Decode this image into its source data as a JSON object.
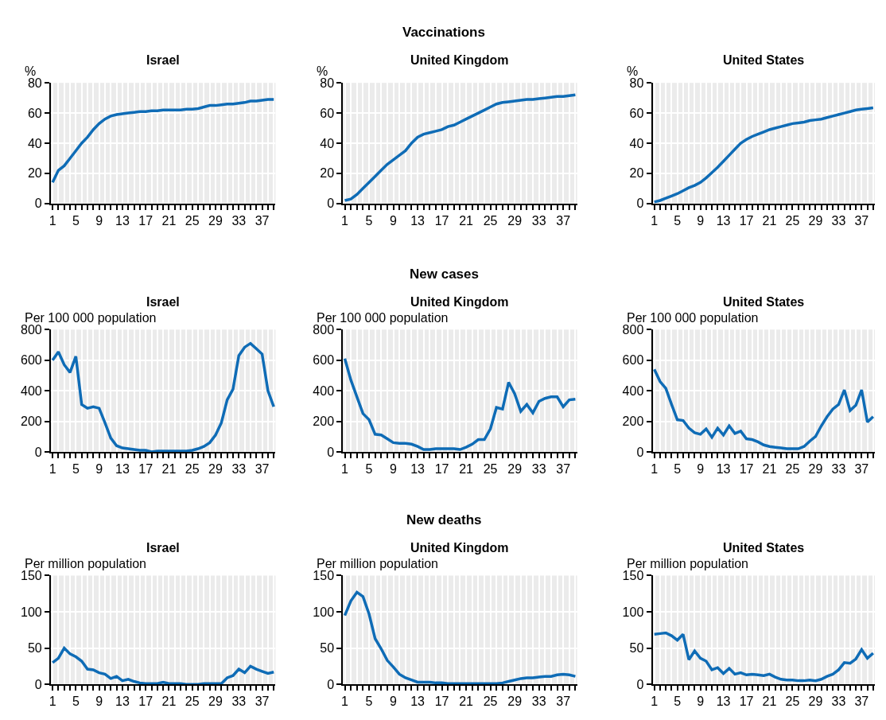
{
  "chart_data": [
    {
      "type": "line",
      "title": "Israel",
      "ylabel": "%",
      "x": [
        1,
        2,
        3,
        4,
        5,
        6,
        7,
        8,
        9,
        10,
        11,
        12,
        13,
        14,
        15,
        16,
        17,
        18,
        19,
        20,
        21,
        22,
        23,
        24,
        25,
        26,
        27,
        28,
        29,
        30,
        31,
        32,
        33,
        34,
        35,
        36,
        37,
        38,
        39
      ],
      "color": "#0f6cb6",
      "values": [
        14,
        22,
        25,
        30,
        35,
        40,
        44,
        49,
        53,
        56,
        58,
        59,
        59.5,
        60,
        60.5,
        61,
        61,
        61.5,
        61.5,
        62,
        62,
        62,
        62,
        62.5,
        62.5,
        63,
        64,
        65,
        65,
        65.5,
        66,
        66,
        66.5,
        67,
        68,
        68,
        68.5,
        69,
        69
      ],
      "xlim": [
        0.7,
        39.3
      ],
      "xticks": [
        1,
        {
          "value": 2,
          "label": null
        },
        {
          "value": 3,
          "label": null
        },
        {
          "value": 4,
          "label": null
        },
        5,
        {
          "value": 6,
          "label": null
        },
        {
          "value": 7,
          "label": null
        },
        {
          "value": 8,
          "label": null
        },
        9,
        {
          "value": 10,
          "label": null
        },
        {
          "value": 11,
          "label": null
        },
        {
          "value": 12,
          "label": null
        },
        13,
        {
          "value": 14,
          "label": null
        },
        {
          "value": 15,
          "label": null
        },
        {
          "value": 16,
          "label": null
        },
        17,
        {
          "value": 18,
          "label": null
        },
        {
          "value": 19,
          "label": null
        },
        {
          "value": 20,
          "label": null
        },
        21,
        {
          "value": 22,
          "label": null
        },
        {
          "value": 23,
          "label": null
        },
        {
          "value": 24,
          "label": null
        },
        25,
        {
          "value": 26,
          "label": null
        },
        {
          "value": 27,
          "label": null
        },
        {
          "value": 28,
          "label": null
        },
        29,
        {
          "value": 30,
          "label": null
        },
        {
          "value": 31,
          "label": null
        },
        {
          "value": 32,
          "label": null
        },
        33,
        {
          "value": 34,
          "label": null
        },
        {
          "value": 35,
          "label": null
        },
        {
          "value": 36,
          "label": null
        },
        37,
        {
          "value": 38,
          "label": null
        },
        {
          "value": 39,
          "label": null
        }
      ],
      "ylim": [
        0,
        80
      ],
      "yticks": [
        0,
        20,
        40,
        60,
        80
      ],
      "grid": true,
      "line_style": "solid"
    },
    {
      "type": "line",
      "title": "United Kingdom",
      "ylabel": "%",
      "annotations": [
        "Vaccinations"
      ],
      "x": [
        1,
        2,
        3,
        4,
        5,
        6,
        7,
        8,
        9,
        10,
        11,
        12,
        13,
        14,
        15,
        16,
        17,
        18,
        19,
        20,
        21,
        22,
        23,
        24,
        25,
        26,
        27,
        28,
        29,
        30,
        31,
        32,
        33,
        34,
        35,
        36,
        37,
        38,
        39
      ],
      "color": "#0f6cb6",
      "values": [
        2,
        3,
        6,
        10,
        14,
        18,
        22,
        26,
        29,
        32,
        35,
        40,
        44,
        46,
        47,
        48,
        49,
        51,
        52,
        54,
        56,
        58,
        60,
        62,
        64,
        66,
        67,
        67.5,
        68,
        68.5,
        69,
        69,
        69.5,
        70,
        70.5,
        71,
        71,
        71.5,
        72
      ],
      "xlim": [
        0.7,
        39.3
      ],
      "xticks": [
        1,
        {
          "value": 2,
          "label": null
        },
        {
          "value": 3,
          "label": null
        },
        {
          "value": 4,
          "label": null
        },
        5,
        {
          "value": 6,
          "label": null
        },
        {
          "value": 7,
          "label": null
        },
        {
          "value": 8,
          "label": null
        },
        9,
        {
          "value": 10,
          "label": null
        },
        {
          "value": 11,
          "label": null
        },
        {
          "value": 12,
          "label": null
        },
        13,
        {
          "value": 14,
          "label": null
        },
        {
          "value": 15,
          "label": null
        },
        {
          "value": 16,
          "label": null
        },
        17,
        {
          "value": 18,
          "label": null
        },
        {
          "value": 19,
          "label": null
        },
        {
          "value": 20,
          "label": null
        },
        21,
        {
          "value": 22,
          "label": null
        },
        {
          "value": 23,
          "label": null
        },
        {
          "value": 24,
          "label": null
        },
        25,
        {
          "value": 26,
          "label": null
        },
        {
          "value": 27,
          "label": null
        },
        {
          "value": 28,
          "label": null
        },
        29,
        {
          "value": 30,
          "label": null
        },
        {
          "value": 31,
          "label": null
        },
        {
          "value": 32,
          "label": null
        },
        33,
        {
          "value": 34,
          "label": null
        },
        {
          "value": 35,
          "label": null
        },
        {
          "value": 36,
          "label": null
        },
        37,
        {
          "value": 38,
          "label": null
        },
        {
          "value": 39,
          "label": null
        }
      ],
      "ylim": [
        0,
        80
      ],
      "yticks": [
        0,
        20,
        40,
        60,
        80
      ],
      "grid": true,
      "line_style": "solid"
    },
    {
      "type": "line",
      "title": "United States",
      "ylabel": "%",
      "x": [
        1,
        2,
        3,
        4,
        5,
        6,
        7,
        8,
        9,
        10,
        11,
        12,
        13,
        14,
        15,
        16,
        17,
        18,
        19,
        20,
        21,
        22,
        23,
        24,
        25,
        26,
        27,
        28,
        29,
        30,
        31,
        32,
        33,
        34,
        35,
        36,
        37,
        38,
        39
      ],
      "color": "#0f6cb6",
      "values": [
        1,
        2,
        3.5,
        5,
        6.5,
        8.5,
        10.5,
        12,
        14,
        17,
        20.5,
        24,
        28,
        32,
        36,
        40,
        42.5,
        44.5,
        46,
        47.5,
        49,
        50,
        51,
        52,
        53,
        53.5,
        54,
        55,
        55.5,
        56,
        57,
        58,
        59,
        60,
        61,
        62,
        62.5,
        63,
        63.5
      ],
      "xlim": [
        0.7,
        39.3
      ],
      "xticks": [
        1,
        {
          "value": 2,
          "label": null
        },
        {
          "value": 3,
          "label": null
        },
        {
          "value": 4,
          "label": null
        },
        5,
        {
          "value": 6,
          "label": null
        },
        {
          "value": 7,
          "label": null
        },
        {
          "value": 8,
          "label": null
        },
        9,
        {
          "value": 10,
          "label": null
        },
        {
          "value": 11,
          "label": null
        },
        {
          "value": 12,
          "label": null
        },
        13,
        {
          "value": 14,
          "label": null
        },
        {
          "value": 15,
          "label": null
        },
        {
          "value": 16,
          "label": null
        },
        17,
        {
          "value": 18,
          "label": null
        },
        {
          "value": 19,
          "label": null
        },
        {
          "value": 20,
          "label": null
        },
        21,
        {
          "value": 22,
          "label": null
        },
        {
          "value": 23,
          "label": null
        },
        {
          "value": 24,
          "label": null
        },
        25,
        {
          "value": 26,
          "label": null
        },
        {
          "value": 27,
          "label": null
        },
        {
          "value": 28,
          "label": null
        },
        29,
        {
          "value": 30,
          "label": null
        },
        {
          "value": 31,
          "label": null
        },
        {
          "value": 32,
          "label": null
        },
        33,
        {
          "value": 34,
          "label": null
        },
        {
          "value": 35,
          "label": null
        },
        {
          "value": 36,
          "label": null
        },
        37,
        {
          "value": 38,
          "label": null
        },
        {
          "value": 39,
          "label": null
        }
      ],
      "ylim": [
        0,
        80
      ],
      "yticks": [
        0,
        20,
        40,
        60,
        80
      ],
      "grid": true,
      "line_style": "solid"
    },
    {
      "type": "line",
      "title": "Israel",
      "ylabel": "Per 100 000 population",
      "x": [
        1,
        2,
        3,
        4,
        5,
        6,
        7,
        8,
        9,
        10,
        11,
        12,
        13,
        14,
        15,
        16,
        17,
        18,
        19,
        20,
        21,
        22,
        23,
        24,
        25,
        26,
        27,
        28,
        29,
        30,
        31,
        32,
        33,
        34,
        35,
        36,
        37,
        38,
        39
      ],
      "color": "#0f6cb6",
      "values": [
        600,
        655,
        570,
        520,
        625,
        310,
        285,
        295,
        285,
        190,
        90,
        40,
        25,
        20,
        15,
        10,
        10,
        0,
        5,
        5,
        5,
        5,
        5,
        5,
        10,
        20,
        35,
        60,
        110,
        190,
        340,
        410,
        630,
        685,
        710,
        675,
        640,
        400,
        295
      ],
      "xlim": [
        0.7,
        39.3
      ],
      "xticks": [
        1,
        {
          "value": 2,
          "label": null
        },
        {
          "value": 3,
          "label": null
        },
        {
          "value": 4,
          "label": null
        },
        5,
        {
          "value": 6,
          "label": null
        },
        {
          "value": 7,
          "label": null
        },
        {
          "value": 8,
          "label": null
        },
        9,
        {
          "value": 10,
          "label": null
        },
        {
          "value": 11,
          "label": null
        },
        {
          "value": 12,
          "label": null
        },
        13,
        {
          "value": 14,
          "label": null
        },
        {
          "value": 15,
          "label": null
        },
        {
          "value": 16,
          "label": null
        },
        17,
        {
          "value": 18,
          "label": null
        },
        {
          "value": 19,
          "label": null
        },
        {
          "value": 20,
          "label": null
        },
        21,
        {
          "value": 22,
          "label": null
        },
        {
          "value": 23,
          "label": null
        },
        {
          "value": 24,
          "label": null
        },
        25,
        {
          "value": 26,
          "label": null
        },
        {
          "value": 27,
          "label": null
        },
        {
          "value": 28,
          "label": null
        },
        29,
        {
          "value": 30,
          "label": null
        },
        {
          "value": 31,
          "label": null
        },
        {
          "value": 32,
          "label": null
        },
        33,
        {
          "value": 34,
          "label": null
        },
        {
          "value": 35,
          "label": null
        },
        {
          "value": 36,
          "label": null
        },
        37,
        {
          "value": 38,
          "label": null
        },
        {
          "value": 39,
          "label": null
        }
      ],
      "ylim": [
        0,
        800
      ],
      "yticks": [
        0,
        200,
        400,
        600,
        800
      ],
      "grid": true,
      "line_style": "solid"
    },
    {
      "type": "line",
      "title": "United Kingdom",
      "ylabel": "Per 100 000 population",
      "annotations": [
        "New cases"
      ],
      "x": [
        1,
        2,
        3,
        4,
        5,
        6,
        7,
        8,
        9,
        10,
        11,
        12,
        13,
        14,
        15,
        16,
        17,
        18,
        19,
        20,
        21,
        22,
        23,
        24,
        25,
        26,
        27,
        28,
        29,
        30,
        31,
        32,
        33,
        34,
        35,
        36,
        37,
        38,
        39
      ],
      "color": "#0f6cb6",
      "values": [
        610,
        470,
        360,
        250,
        210,
        115,
        110,
        85,
        60,
        55,
        55,
        50,
        35,
        15,
        15,
        20,
        20,
        20,
        20,
        15,
        30,
        50,
        80,
        80,
        150,
        290,
        280,
        455,
        380,
        265,
        310,
        255,
        330,
        350,
        360,
        360,
        295,
        340,
        345
      ],
      "xlim": [
        0.7,
        39.3
      ],
      "xticks": [
        1,
        {
          "value": 2,
          "label": null
        },
        {
          "value": 3,
          "label": null
        },
        {
          "value": 4,
          "label": null
        },
        5,
        {
          "value": 6,
          "label": null
        },
        {
          "value": 7,
          "label": null
        },
        {
          "value": 8,
          "label": null
        },
        9,
        {
          "value": 10,
          "label": null
        },
        {
          "value": 11,
          "label": null
        },
        {
          "value": 12,
          "label": null
        },
        13,
        {
          "value": 14,
          "label": null
        },
        {
          "value": 15,
          "label": null
        },
        {
          "value": 16,
          "label": null
        },
        17,
        {
          "value": 18,
          "label": null
        },
        {
          "value": 19,
          "label": null
        },
        {
          "value": 20,
          "label": null
        },
        21,
        {
          "value": 22,
          "label": null
        },
        {
          "value": 23,
          "label": null
        },
        {
          "value": 24,
          "label": null
        },
        25,
        {
          "value": 26,
          "label": null
        },
        {
          "value": 27,
          "label": null
        },
        {
          "value": 28,
          "label": null
        },
        29,
        {
          "value": 30,
          "label": null
        },
        {
          "value": 31,
          "label": null
        },
        {
          "value": 32,
          "label": null
        },
        33,
        {
          "value": 34,
          "label": null
        },
        {
          "value": 35,
          "label": null
        },
        {
          "value": 36,
          "label": null
        },
        37,
        {
          "value": 38,
          "label": null
        },
        {
          "value": 39,
          "label": null
        }
      ],
      "ylim": [
        0,
        800
      ],
      "yticks": [
        0,
        200,
        400,
        600,
        800
      ],
      "grid": true,
      "line_style": "solid"
    },
    {
      "type": "line",
      "title": "United States",
      "ylabel": "Per 100 000 population",
      "x": [
        1,
        2,
        3,
        4,
        5,
        6,
        7,
        8,
        9,
        10,
        11,
        12,
        13,
        14,
        15,
        16,
        17,
        18,
        19,
        20,
        21,
        22,
        23,
        24,
        25,
        26,
        27,
        28,
        29,
        30,
        31,
        32,
        33,
        34,
        35,
        36,
        37,
        38,
        39
      ],
      "color": "#0f6cb6",
      "values": [
        540,
        460,
        415,
        310,
        210,
        205,
        155,
        125,
        115,
        150,
        95,
        155,
        110,
        170,
        120,
        135,
        85,
        80,
        65,
        45,
        35,
        30,
        25,
        20,
        20,
        20,
        35,
        70,
        100,
        170,
        230,
        280,
        310,
        405,
        270,
        305,
        405,
        195,
        230
      ],
      "xlim": [
        0.7,
        39.3
      ],
      "xticks": [
        1,
        {
          "value": 2,
          "label": null
        },
        {
          "value": 3,
          "label": null
        },
        {
          "value": 4,
          "label": null
        },
        5,
        {
          "value": 6,
          "label": null
        },
        {
          "value": 7,
          "label": null
        },
        {
          "value": 8,
          "label": null
        },
        9,
        {
          "value": 10,
          "label": null
        },
        {
          "value": 11,
          "label": null
        },
        {
          "value": 12,
          "label": null
        },
        13,
        {
          "value": 14,
          "label": null
        },
        {
          "value": 15,
          "label": null
        },
        {
          "value": 16,
          "label": null
        },
        17,
        {
          "value": 18,
          "label": null
        },
        {
          "value": 19,
          "label": null
        },
        {
          "value": 20,
          "label": null
        },
        21,
        {
          "value": 22,
          "label": null
        },
        {
          "value": 23,
          "label": null
        },
        {
          "value": 24,
          "label": null
        },
        25,
        {
          "value": 26,
          "label": null
        },
        {
          "value": 27,
          "label": null
        },
        {
          "value": 28,
          "label": null
        },
        29,
        {
          "value": 30,
          "label": null
        },
        {
          "value": 31,
          "label": null
        },
        {
          "value": 32,
          "label": null
        },
        33,
        {
          "value": 34,
          "label": null
        },
        {
          "value": 35,
          "label": null
        },
        {
          "value": 36,
          "label": null
        },
        37,
        {
          "value": 38,
          "label": null
        },
        {
          "value": 39,
          "label": null
        }
      ],
      "ylim": [
        0,
        800
      ],
      "yticks": [
        0,
        200,
        400,
        600,
        800
      ],
      "grid": true,
      "line_style": "solid"
    },
    {
      "type": "line",
      "title": "Israel",
      "ylabel": "Per million population",
      "x": [
        1,
        2,
        3,
        4,
        5,
        6,
        7,
        8,
        9,
        10,
        11,
        12,
        13,
        14,
        15,
        16,
        17,
        18,
        19,
        20,
        21,
        22,
        23,
        24,
        25,
        26,
        27,
        28,
        29,
        30,
        31,
        32,
        33,
        34,
        35,
        36,
        37,
        38,
        39
      ],
      "color": "#0f6cb6",
      "values": [
        30,
        36,
        50,
        42,
        38,
        32,
        21,
        20,
        16,
        14,
        8,
        11,
        5,
        7,
        4,
        2,
        1,
        1,
        1,
        3,
        1,
        1,
        1,
        0,
        0,
        0,
        1,
        1,
        1,
        1,
        9,
        12,
        21,
        16,
        25,
        21,
        18,
        15,
        17
      ],
      "xlim": [
        0.7,
        39.3
      ],
      "xticks": [
        1,
        {
          "value": 2,
          "label": null
        },
        {
          "value": 3,
          "label": null
        },
        {
          "value": 4,
          "label": null
        },
        5,
        {
          "value": 6,
          "label": null
        },
        {
          "value": 7,
          "label": null
        },
        {
          "value": 8,
          "label": null
        },
        9,
        {
          "value": 10,
          "label": null
        },
        {
          "value": 11,
          "label": null
        },
        {
          "value": 12,
          "label": null
        },
        13,
        {
          "value": 14,
          "label": null
        },
        {
          "value": 15,
          "label": null
        },
        {
          "value": 16,
          "label": null
        },
        17,
        {
          "value": 18,
          "label": null
        },
        {
          "value": 19,
          "label": null
        },
        {
          "value": 20,
          "label": null
        },
        21,
        {
          "value": 22,
          "label": null
        },
        {
          "value": 23,
          "label": null
        },
        {
          "value": 24,
          "label": null
        },
        25,
        {
          "value": 26,
          "label": null
        },
        {
          "value": 27,
          "label": null
        },
        {
          "value": 28,
          "label": null
        },
        29,
        {
          "value": 30,
          "label": null
        },
        {
          "value": 31,
          "label": null
        },
        {
          "value": 32,
          "label": null
        },
        33,
        {
          "value": 34,
          "label": null
        },
        {
          "value": 35,
          "label": null
        },
        {
          "value": 36,
          "label": null
        },
        37,
        {
          "value": 38,
          "label": null
        },
        {
          "value": 39,
          "label": null
        }
      ],
      "ylim": [
        0,
        150
      ],
      "yticks": [
        0,
        50,
        100,
        150
      ],
      "grid": true,
      "line_style": "solid"
    },
    {
      "type": "line",
      "title": "United Kingdom",
      "ylabel": "Per million population",
      "annotations": [
        "New deaths"
      ],
      "x": [
        1,
        2,
        3,
        4,
        5,
        6,
        7,
        8,
        9,
        10,
        11,
        12,
        13,
        14,
        15,
        16,
        17,
        18,
        19,
        20,
        21,
        22,
        23,
        24,
        25,
        26,
        27,
        28,
        29,
        30,
        31,
        32,
        33,
        34,
        35,
        36,
        37,
        38,
        39
      ],
      "color": "#0f6cb6",
      "values": [
        95,
        115,
        127,
        121,
        97,
        63,
        49,
        33,
        24,
        14,
        9,
        6,
        3,
        3,
        3,
        2,
        2,
        1,
        1,
        1,
        1,
        1,
        1,
        1,
        1,
        1,
        2,
        4,
        6,
        8,
        9,
        9,
        10,
        11,
        11,
        13,
        14,
        13,
        11
      ],
      "xlim": [
        0.7,
        39.3
      ],
      "xticks": [
        1,
        {
          "value": 2,
          "label": null
        },
        {
          "value": 3,
          "label": null
        },
        {
          "value": 4,
          "label": null
        },
        5,
        {
          "value": 6,
          "label": null
        },
        {
          "value": 7,
          "label": null
        },
        {
          "value": 8,
          "label": null
        },
        9,
        {
          "value": 10,
          "label": null
        },
        {
          "value": 11,
          "label": null
        },
        {
          "value": 12,
          "label": null
        },
        13,
        {
          "value": 14,
          "label": null
        },
        {
          "value": 15,
          "label": null
        },
        {
          "value": 16,
          "label": null
        },
        17,
        {
          "value": 18,
          "label": null
        },
        {
          "value": 19,
          "label": null
        },
        {
          "value": 20,
          "label": null
        },
        21,
        {
          "value": 22,
          "label": null
        },
        {
          "value": 23,
          "label": null
        },
        {
          "value": 24,
          "label": null
        },
        25,
        {
          "value": 26,
          "label": null
        },
        {
          "value": 27,
          "label": null
        },
        {
          "value": 28,
          "label": null
        },
        29,
        {
          "value": 30,
          "label": null
        },
        {
          "value": 31,
          "label": null
        },
        {
          "value": 32,
          "label": null
        },
        33,
        {
          "value": 34,
          "label": null
        },
        {
          "value": 35,
          "label": null
        },
        {
          "value": 36,
          "label": null
        },
        37,
        {
          "value": 38,
          "label": null
        },
        {
          "value": 39,
          "label": null
        }
      ],
      "ylim": [
        0,
        150
      ],
      "yticks": [
        0,
        50,
        100,
        150
      ],
      "grid": true,
      "line_style": "solid"
    },
    {
      "type": "line",
      "title": "United States",
      "ylabel": "Per million population",
      "x": [
        1,
        2,
        3,
        4,
        5,
        6,
        7,
        8,
        9,
        10,
        11,
        12,
        13,
        14,
        15,
        16,
        17,
        18,
        19,
        20,
        21,
        22,
        23,
        24,
        25,
        26,
        27,
        28,
        29,
        30,
        31,
        32,
        33,
        34,
        35,
        36,
        37,
        38,
        39
      ],
      "color": "#0f6cb6",
      "values": [
        69,
        70,
        71,
        67,
        61,
        69,
        34,
        46,
        36,
        32,
        20,
        23,
        15,
        22,
        14,
        16,
        13,
        14,
        13,
        12,
        14,
        10,
        7,
        6,
        6,
        5,
        5,
        6,
        5,
        7,
        11,
        14,
        20,
        30,
        29,
        35,
        48,
        36,
        43
      ],
      "xlim": [
        0.7,
        39.3
      ],
      "xticks": [
        1,
        {
          "value": 2,
          "label": null
        },
        {
          "value": 3,
          "label": null
        },
        {
          "value": 4,
          "label": null
        },
        5,
        {
          "value": 6,
          "label": null
        },
        {
          "value": 7,
          "label": null
        },
        {
          "value": 8,
          "label": null
        },
        9,
        {
          "value": 10,
          "label": null
        },
        {
          "value": 11,
          "label": null
        },
        {
          "value": 12,
          "label": null
        },
        13,
        {
          "value": 14,
          "label": null
        },
        {
          "value": 15,
          "label": null
        },
        {
          "value": 16,
          "label": null
        },
        17,
        {
          "value": 18,
          "label": null
        },
        {
          "value": 19,
          "label": null
        },
        {
          "value": 20,
          "label": null
        },
        21,
        {
          "value": 22,
          "label": null
        },
        {
          "value": 23,
          "label": null
        },
        {
          "value": 24,
          "label": null
        },
        25,
        {
          "value": 26,
          "label": null
        },
        {
          "value": 27,
          "label": null
        },
        {
          "value": 28,
          "label": null
        },
        29,
        {
          "value": 30,
          "label": null
        },
        {
          "value": 31,
          "label": null
        },
        {
          "value": 32,
          "label": null
        },
        33,
        {
          "value": 34,
          "label": null
        },
        {
          "value": 35,
          "label": null
        },
        {
          "value": 36,
          "label": null
        },
        37,
        {
          "value": 38,
          "label": null
        },
        {
          "value": 39,
          "label": null
        }
      ],
      "ylim": [
        0,
        150
      ],
      "yticks": [
        0,
        50,
        100,
        150
      ],
      "grid": true,
      "line_style": "solid"
    }
  ]
}
